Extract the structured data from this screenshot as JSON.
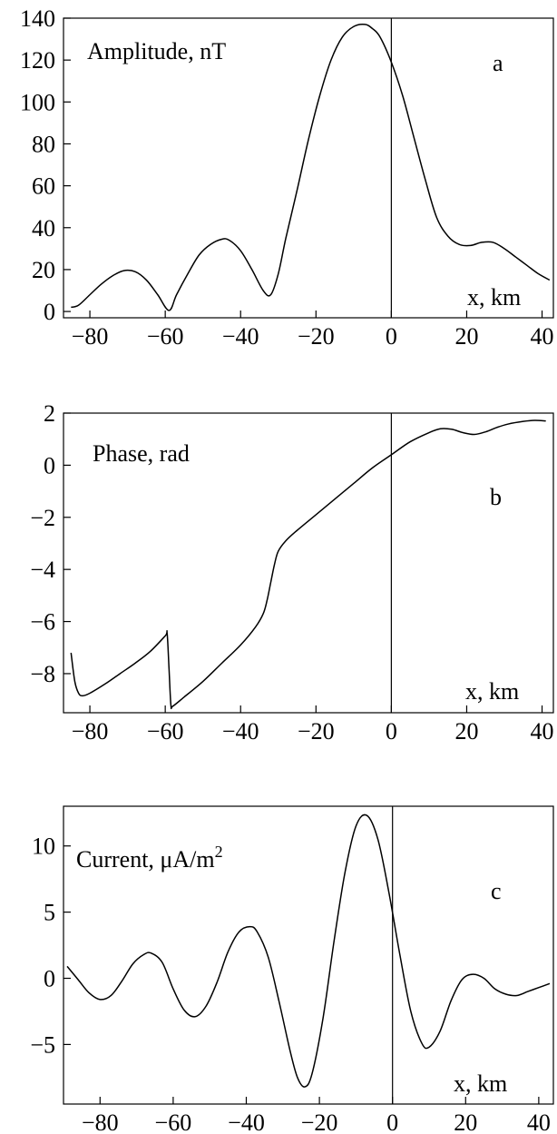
{
  "chart_data": [
    {
      "type": "line",
      "panel_label": "a",
      "annotation": "Amplitude, nT",
      "xlabel": "x, km",
      "xlim": [
        -87,
        43
      ],
      "ylim": [
        -3,
        140
      ],
      "x_ticks": [
        -80,
        -60,
        -40,
        -20,
        0,
        20,
        40
      ],
      "x_tick_labels": [
        "−80",
        "−60",
        "−40",
        "−20",
        "0",
        "20",
        "40"
      ],
      "y_ticks": [
        0,
        20,
        40,
        60,
        80,
        100,
        120,
        140
      ],
      "y_tick_labels": [
        "0",
        "20",
        "40",
        "60",
        "80",
        "100",
        "120",
        "140"
      ],
      "vline_x": 0,
      "grid": false,
      "series": [
        {
          "x": [
            -85,
            -83,
            -80,
            -77,
            -74,
            -71,
            -68,
            -65,
            -62,
            -59,
            -57,
            -54,
            -51,
            -48,
            -45,
            -43,
            -40,
            -37,
            -34,
            -32,
            -30,
            -28,
            -25,
            -22,
            -19,
            -16,
            -13,
            -10,
            -7,
            -5,
            -3,
            0,
            3,
            6,
            9,
            12,
            15,
            18,
            21,
            24,
            27,
            30,
            33,
            36,
            39,
            42
          ],
          "y": [
            2,
            3,
            8,
            13,
            17,
            19.5,
            19,
            15,
            8,
            0.5,
            8,
            18,
            27,
            32,
            34.5,
            34,
            29,
            20,
            10,
            8,
            18,
            35,
            58,
            82,
            103,
            120,
            131,
            136,
            137,
            135,
            131,
            119,
            103,
            83,
            63,
            45,
            36,
            32,
            31.5,
            33,
            33,
            30,
            26,
            22,
            18,
            15
          ]
        }
      ]
    },
    {
      "type": "line",
      "panel_label": "b",
      "annotation": "Phase, rad",
      "xlabel": "x, km",
      "xlim": [
        -87,
        43
      ],
      "ylim": [
        -9.5,
        2
      ],
      "x_ticks": [
        -80,
        -60,
        -40,
        -20,
        0,
        20,
        40
      ],
      "x_tick_labels": [
        "−80",
        "−60",
        "−40",
        "−20",
        "0",
        "20",
        "40"
      ],
      "y_ticks": [
        2,
        0,
        -2,
        -4,
        -6,
        -8
      ],
      "y_tick_labels": [
        "2",
        "0",
        "−2",
        "−4",
        "−6",
        "−8"
      ],
      "vline_x": 0,
      "grid": false,
      "series": [
        {
          "x": [
            -85,
            -84,
            -83,
            -82,
            -80,
            -76,
            -72,
            -68,
            -64,
            -60,
            -59.5,
            -59,
            -58.5,
            -58,
            -55,
            -50,
            -45,
            -40,
            -36,
            -34,
            -33,
            -32,
            -31,
            -30,
            -28,
            -25,
            -20,
            -15,
            -10,
            -5,
            0,
            5,
            10,
            13,
            16,
            19,
            22,
            25,
            28,
            31,
            35,
            38,
            41
          ],
          "y": [
            -7.2,
            -8.3,
            -8.75,
            -8.85,
            -8.75,
            -8.4,
            -8.0,
            -7.6,
            -7.15,
            -6.55,
            -6.45,
            -7.8,
            -9.2,
            -9.25,
            -8.9,
            -8.3,
            -7.6,
            -6.9,
            -6.2,
            -5.7,
            -5.2,
            -4.5,
            -3.8,
            -3.3,
            -2.9,
            -2.5,
            -1.9,
            -1.3,
            -0.7,
            -0.1,
            0.4,
            0.9,
            1.25,
            1.4,
            1.38,
            1.25,
            1.18,
            1.28,
            1.45,
            1.58,
            1.68,
            1.72,
            1.7
          ]
        }
      ]
    },
    {
      "type": "line",
      "panel_label": "c",
      "annotation": "Current, μA/m",
      "annotation_superscript": "2",
      "xlabel": "x, km",
      "xlim": [
        -90,
        44
      ],
      "ylim": [
        -9.5,
        13
      ],
      "x_ticks": [
        -80,
        -60,
        -40,
        -20,
        0,
        20,
        40
      ],
      "x_tick_labels": [
        "−80",
        "−60",
        "−40",
        "−20",
        "0",
        "20",
        "40"
      ],
      "y_ticks": [
        10,
        5,
        0,
        -5
      ],
      "y_tick_labels": [
        "10",
        "5",
        "0",
        "−5"
      ],
      "vline_x": 0,
      "grid": false,
      "series": [
        {
          "x": [
            -89,
            -86,
            -83,
            -80,
            -77,
            -74,
            -71,
            -68,
            -66,
            -63,
            -60,
            -57,
            -54,
            -51,
            -48,
            -45,
            -42,
            -39,
            -37,
            -34,
            -31,
            -28,
            -26,
            -24,
            -22,
            -19,
            -16,
            -13,
            -10,
            -7,
            -4,
            -1,
            2,
            5,
            8,
            10,
            13,
            16,
            19,
            22,
            25,
            28,
            31,
            34,
            37,
            40,
            43
          ],
          "y": [
            0.9,
            -0.1,
            -1.1,
            -1.6,
            -1.3,
            -0.2,
            1.1,
            1.8,
            1.9,
            1.2,
            -0.8,
            -2.4,
            -2.9,
            -2.1,
            -0.3,
            2.0,
            3.5,
            3.9,
            3.5,
            1.6,
            -1.8,
            -5.5,
            -7.5,
            -8.2,
            -7.2,
            -3.0,
            2.8,
            8.0,
            11.5,
            12.3,
            10.5,
            6.5,
            1.8,
            -2.5,
            -4.9,
            -5.2,
            -4.0,
            -1.7,
            -0.1,
            0.3,
            0.0,
            -0.8,
            -1.2,
            -1.3,
            -1.0,
            -0.7,
            -0.4
          ]
        }
      ]
    }
  ]
}
